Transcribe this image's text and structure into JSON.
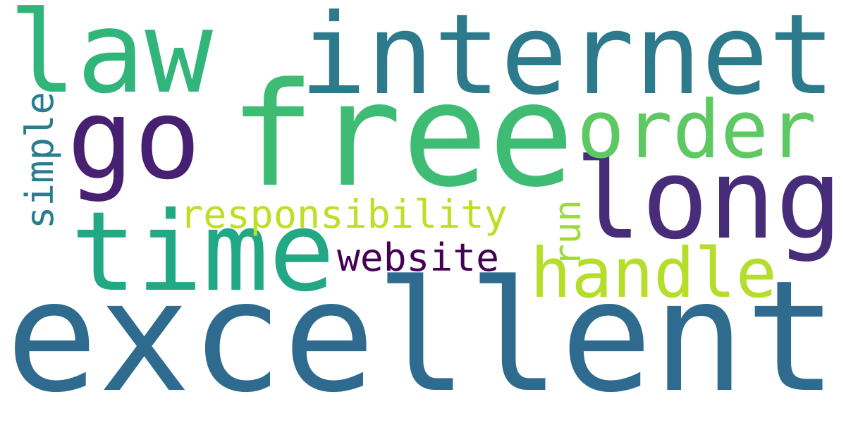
{
  "words": [
    {
      "key": "excellent",
      "text": "excellent",
      "color": "#2e6b8e",
      "orientation": "horizontal"
    },
    {
      "key": "free",
      "text": "free",
      "color": "#3fbc73",
      "orientation": "horizontal"
    },
    {
      "key": "internet",
      "text": "internet",
      "color": "#2d7a8c",
      "orientation": "horizontal"
    },
    {
      "key": "law",
      "text": "law",
      "color": "#31b57b",
      "orientation": "horizontal"
    },
    {
      "key": "go",
      "text": "go",
      "color": "#482071",
      "orientation": "horizontal"
    },
    {
      "key": "time",
      "text": "time",
      "color": "#22a884",
      "orientation": "horizontal"
    },
    {
      "key": "long",
      "text": "long",
      "color": "#472c7a",
      "orientation": "horizontal"
    },
    {
      "key": "order",
      "text": "order",
      "color": "#5ec962",
      "orientation": "horizontal"
    },
    {
      "key": "handle",
      "text": "handle",
      "color": "#b5de2b",
      "orientation": "horizontal"
    },
    {
      "key": "responsibility",
      "text": "responsibility",
      "color": "#bddf26",
      "orientation": "horizontal"
    },
    {
      "key": "website",
      "text": "website",
      "color": "#440154",
      "orientation": "horizontal"
    },
    {
      "key": "simple",
      "text": "simple",
      "color": "#287d8e",
      "orientation": "vertical"
    },
    {
      "key": "run",
      "text": "run",
      "color": "#a0da39",
      "orientation": "vertical"
    }
  ]
}
